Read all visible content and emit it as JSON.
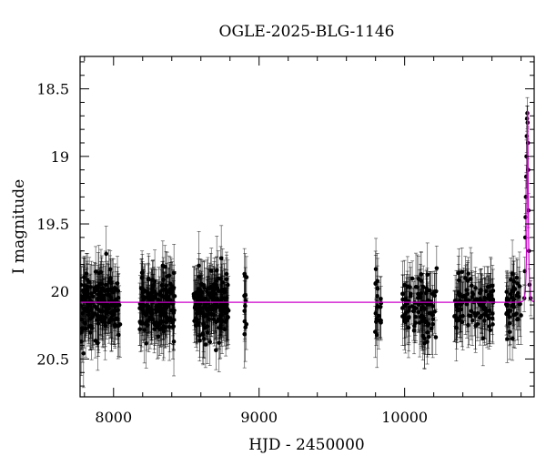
{
  "chart_data": {
    "type": "scatter",
    "title": "OGLE-2025-BLG-1146",
    "xlabel": "HJD - 2450000",
    "ylabel": "I magnitude",
    "xlim": [
      7770,
      10890
    ],
    "ylim": [
      20.78,
      18.26
    ],
    "y_inverted": true,
    "x_ticks": [
      8000,
      9000,
      10000
    ],
    "y_ticks": [
      18.5,
      19,
      19.5,
      20,
      20.5
    ],
    "x_tick_labels": [
      "8000",
      "9000",
      "10000"
    ],
    "y_tick_labels": [
      "18.5",
      "19",
      "19.5",
      "20",
      "20.5"
    ],
    "grid": false,
    "legend": "none",
    "series": [
      {
        "kind": "points_with_errorbars",
        "color": "#000000",
        "baseline_mag": 20.1,
        "scatter_mag": 0.18,
        "typical_error": 0.17,
        "seasons": [
          {
            "start": 7775,
            "end": 8045,
            "count": 190
          },
          {
            "start": 8180,
            "end": 8420,
            "count": 180
          },
          {
            "start": 8550,
            "end": 8790,
            "count": 190
          },
          {
            "start": 8895,
            "end": 8915,
            "count": 12
          },
          {
            "start": 9795,
            "end": 9840,
            "count": 22
          },
          {
            "start": 9985,
            "end": 10220,
            "count": 110
          },
          {
            "start": 10340,
            "end": 10610,
            "count": 110
          },
          {
            "start": 10695,
            "end": 10800,
            "count": 50
          }
        ],
        "event_points": [
          {
            "x": 10822,
            "y": 20.05
          },
          {
            "x": 10826,
            "y": 19.85
          },
          {
            "x": 10829,
            "y": 19.6
          },
          {
            "x": 10831,
            "y": 19.45
          },
          {
            "x": 10833,
            "y": 19.3
          },
          {
            "x": 10835,
            "y": 19.15
          },
          {
            "x": 10837,
            "y": 19.0
          },
          {
            "x": 10839,
            "y": 18.85
          },
          {
            "x": 10841,
            "y": 18.72
          },
          {
            "x": 10843,
            "y": 18.68
          },
          {
            "x": 10845,
            "y": 18.75
          },
          {
            "x": 10847,
            "y": 18.9
          },
          {
            "x": 10849,
            "y": 19.1
          },
          {
            "x": 10851,
            "y": 19.4
          },
          {
            "x": 10854,
            "y": 19.7
          },
          {
            "x": 10858,
            "y": 19.95
          },
          {
            "x": 10866,
            "y": 20.05
          }
        ]
      },
      {
        "kind": "model_line",
        "color": "#cc00cc",
        "baseline": 20.08,
        "peak_x": 10845,
        "peak_mag": 18.68,
        "t_E": 9
      }
    ]
  }
}
